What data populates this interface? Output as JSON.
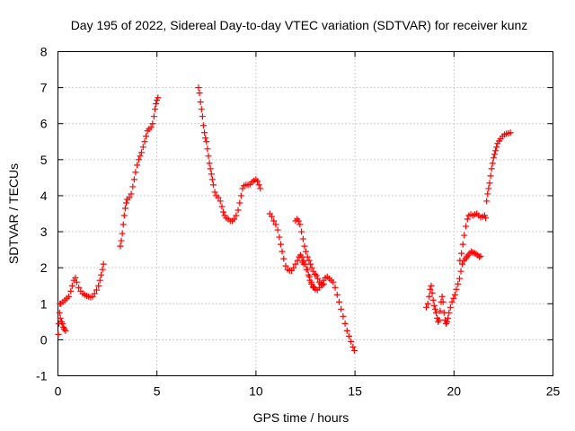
{
  "chart_data": {
    "type": "scatter",
    "title": "Day 195 of 2022, Sidereal Day-to-day VTEC variation (SDTVAR) for receiver kunz",
    "xlabel": "GPS time / hours",
    "ylabel": "SDTVAR / TECUs",
    "xlim": [
      0,
      25
    ],
    "ylim": [
      -1,
      8
    ],
    "xticks": [
      0,
      5,
      10,
      15,
      20,
      25
    ],
    "yticks": [
      -1,
      0,
      1,
      2,
      3,
      4,
      5,
      6,
      7,
      8
    ],
    "grid": true,
    "marker": "+",
    "color": "#ff0000",
    "series": [
      {
        "name": "",
        "points": [
          [
            0.02,
            0.15
          ],
          [
            0.05,
            0.45
          ],
          [
            0.08,
            0.75
          ],
          [
            0.1,
            1.0
          ],
          [
            0.12,
            0.6
          ],
          [
            0.18,
            0.5
          ],
          [
            0.22,
            0.45
          ],
          [
            0.28,
            0.35
          ],
          [
            0.32,
            0.3
          ],
          [
            0.38,
            0.25
          ],
          [
            0.15,
            1.0
          ],
          [
            0.25,
            1.05
          ],
          [
            0.35,
            1.1
          ],
          [
            0.45,
            1.15
          ],
          [
            0.55,
            1.2
          ],
          [
            0.65,
            1.35
          ],
          [
            0.72,
            1.5
          ],
          [
            0.8,
            1.65
          ],
          [
            0.88,
            1.72
          ],
          [
            0.95,
            1.6
          ],
          [
            1.05,
            1.45
          ],
          [
            1.15,
            1.35
          ],
          [
            1.25,
            1.28
          ],
          [
            1.35,
            1.25
          ],
          [
            1.45,
            1.22
          ],
          [
            1.55,
            1.2
          ],
          [
            1.65,
            1.18
          ],
          [
            1.75,
            1.2
          ],
          [
            1.85,
            1.28
          ],
          [
            1.95,
            1.38
          ],
          [
            2.05,
            1.5
          ],
          [
            2.12,
            1.65
          ],
          [
            2.18,
            1.8
          ],
          [
            2.25,
            1.95
          ],
          [
            2.3,
            2.1
          ],
          [
            3.15,
            2.6
          ],
          [
            3.2,
            2.75
          ],
          [
            3.25,
            2.95
          ],
          [
            3.3,
            3.2
          ],
          [
            3.35,
            3.45
          ],
          [
            3.4,
            3.65
          ],
          [
            3.45,
            3.8
          ],
          [
            3.5,
            3.9
          ],
          [
            3.6,
            3.95
          ],
          [
            3.7,
            4.05
          ],
          [
            3.78,
            4.25
          ],
          [
            3.85,
            4.45
          ],
          [
            3.92,
            4.65
          ],
          [
            4.0,
            4.85
          ],
          [
            4.08,
            5.0
          ],
          [
            4.15,
            5.1
          ],
          [
            4.22,
            5.2
          ],
          [
            4.3,
            5.35
          ],
          [
            4.38,
            5.5
          ],
          [
            4.45,
            5.65
          ],
          [
            4.52,
            5.8
          ],
          [
            4.6,
            5.85
          ],
          [
            4.7,
            5.9
          ],
          [
            4.78,
            6.0
          ],
          [
            4.85,
            6.2
          ],
          [
            4.9,
            6.4
          ],
          [
            4.95,
            6.55
          ],
          [
            5.0,
            6.65
          ],
          [
            5.05,
            6.72
          ],
          [
            7.1,
            7.0
          ],
          [
            7.15,
            6.85
          ],
          [
            7.2,
            6.6
          ],
          [
            7.25,
            6.4
          ],
          [
            7.3,
            6.2
          ],
          [
            7.35,
            5.95
          ],
          [
            7.4,
            5.75
          ],
          [
            7.45,
            5.6
          ],
          [
            7.5,
            5.5
          ],
          [
            7.55,
            5.3
          ],
          [
            7.6,
            5.1
          ],
          [
            7.65,
            4.9
          ],
          [
            7.7,
            4.75
          ],
          [
            7.75,
            4.6
          ],
          [
            7.8,
            4.45
          ],
          [
            7.85,
            4.3
          ],
          [
            7.92,
            4.1
          ],
          [
            8.0,
            4.0
          ],
          [
            8.1,
            3.95
          ],
          [
            8.2,
            3.85
          ],
          [
            8.28,
            3.7
          ],
          [
            8.35,
            3.55
          ],
          [
            8.42,
            3.45
          ],
          [
            8.5,
            3.38
          ],
          [
            8.6,
            3.35
          ],
          [
            8.7,
            3.3
          ],
          [
            8.8,
            3.3
          ],
          [
            8.9,
            3.35
          ],
          [
            9.0,
            3.45
          ],
          [
            9.1,
            3.6
          ],
          [
            9.18,
            3.8
          ],
          [
            9.25,
            4.0
          ],
          [
            9.32,
            4.2
          ],
          [
            9.4,
            4.28
          ],
          [
            9.5,
            4.3
          ],
          [
            9.6,
            4.3
          ],
          [
            9.7,
            4.32
          ],
          [
            9.8,
            4.38
          ],
          [
            9.9,
            4.42
          ],
          [
            10.0,
            4.45
          ],
          [
            10.08,
            4.4
          ],
          [
            10.15,
            4.3
          ],
          [
            10.22,
            4.2
          ],
          [
            10.7,
            3.5
          ],
          [
            10.8,
            3.42
          ],
          [
            10.9,
            3.3
          ],
          [
            11.0,
            3.2
          ],
          [
            11.1,
            3.05
          ],
          [
            11.18,
            2.85
          ],
          [
            11.25,
            2.65
          ],
          [
            11.32,
            2.45
          ],
          [
            11.4,
            2.25
          ],
          [
            11.5,
            2.05
          ],
          [
            11.6,
            1.95
          ],
          [
            11.7,
            1.92
          ],
          [
            11.8,
            1.92
          ],
          [
            11.9,
            2.0
          ],
          [
            12.0,
            2.1
          ],
          [
            12.1,
            2.2
          ],
          [
            12.18,
            2.3
          ],
          [
            12.25,
            2.35
          ],
          [
            12.32,
            2.3
          ],
          [
            12.4,
            2.2
          ],
          [
            12.5,
            2.1
          ],
          [
            12.6,
            1.95
          ],
          [
            12.7,
            1.75
          ],
          [
            12.8,
            1.6
          ],
          [
            12.9,
            1.45
          ],
          [
            13.0,
            1.4
          ],
          [
            13.1,
            1.38
          ],
          [
            13.2,
            1.45
          ],
          [
            13.3,
            1.55
          ],
          [
            13.4,
            1.65
          ],
          [
            13.5,
            1.72
          ],
          [
            13.6,
            1.75
          ],
          [
            13.7,
            1.7
          ],
          [
            13.8,
            1.65
          ],
          [
            13.9,
            1.6
          ],
          [
            14.0,
            1.45
          ],
          [
            14.1,
            1.25
          ],
          [
            14.2,
            1.05
          ],
          [
            14.3,
            0.85
          ],
          [
            14.4,
            0.65
          ],
          [
            14.5,
            0.45
          ],
          [
            14.6,
            0.25
          ],
          [
            14.7,
            0.1
          ],
          [
            14.8,
            -0.05
          ],
          [
            14.9,
            -0.2
          ],
          [
            14.97,
            -0.3
          ],
          [
            12.0,
            3.3
          ],
          [
            12.08,
            3.35
          ],
          [
            12.15,
            3.3
          ],
          [
            12.22,
            3.2
          ],
          [
            12.3,
            3.0
          ],
          [
            12.38,
            2.8
          ],
          [
            12.45,
            2.6
          ],
          [
            12.52,
            2.45
          ],
          [
            12.6,
            2.3
          ],
          [
            12.68,
            2.2
          ],
          [
            12.75,
            2.1
          ],
          [
            12.82,
            2.0
          ],
          [
            12.9,
            1.9
          ],
          [
            12.98,
            1.82
          ],
          [
            13.05,
            1.78
          ],
          [
            13.12,
            1.7
          ],
          [
            13.2,
            1.6
          ],
          [
            13.28,
            1.55
          ],
          [
            13.35,
            1.52
          ],
          [
            13.42,
            1.55
          ],
          [
            12.35,
            2.15
          ],
          [
            12.42,
            2.1
          ],
          [
            12.55,
            1.95
          ],
          [
            12.65,
            1.8
          ],
          [
            12.72,
            1.65
          ],
          [
            12.8,
            1.55
          ],
          [
            12.88,
            1.48
          ],
          [
            12.95,
            1.45
          ],
          [
            18.6,
            0.9
          ],
          [
            18.68,
            1.0
          ],
          [
            18.75,
            1.2
          ],
          [
            18.8,
            1.4
          ],
          [
            18.85,
            1.5
          ],
          [
            18.9,
            1.3
          ],
          [
            18.95,
            1.1
          ],
          [
            19.0,
            0.95
          ],
          [
            19.05,
            0.85
          ],
          [
            19.1,
            0.75
          ],
          [
            19.15,
            0.6
          ],
          [
            19.2,
            0.5
          ],
          [
            19.25,
            0.55
          ],
          [
            19.3,
            0.8
          ],
          [
            19.35,
            1.05
          ],
          [
            19.4,
            1.2
          ],
          [
            19.45,
            1.05
          ],
          [
            19.5,
            0.75
          ],
          [
            19.55,
            0.55
          ],
          [
            19.6,
            0.45
          ],
          [
            19.65,
            0.5
          ],
          [
            19.7,
            0.6
          ],
          [
            19.75,
            0.75
          ],
          [
            19.82,
            0.9
          ],
          [
            19.9,
            1.05
          ],
          [
            19.98,
            1.15
          ],
          [
            20.05,
            1.25
          ],
          [
            20.12,
            1.4
          ],
          [
            20.2,
            1.55
          ],
          [
            20.28,
            1.7
          ],
          [
            20.35,
            1.9
          ],
          [
            20.42,
            2.1
          ],
          [
            20.5,
            2.2
          ],
          [
            20.58,
            2.25
          ],
          [
            20.65,
            2.3
          ],
          [
            20.72,
            2.35
          ],
          [
            20.8,
            2.4
          ],
          [
            20.88,
            2.45
          ],
          [
            20.95,
            2.42
          ],
          [
            21.05,
            2.4
          ],
          [
            21.12,
            2.38
          ],
          [
            21.2,
            2.35
          ],
          [
            21.28,
            2.3
          ],
          [
            21.35,
            2.32
          ],
          [
            20.3,
            2.2
          ],
          [
            20.38,
            2.4
          ],
          [
            20.45,
            2.65
          ],
          [
            20.52,
            2.9
          ],
          [
            20.6,
            3.15
          ],
          [
            20.68,
            3.35
          ],
          [
            20.75,
            3.45
          ],
          [
            20.85,
            3.48
          ],
          [
            20.95,
            3.45
          ],
          [
            21.05,
            3.48
          ],
          [
            21.15,
            3.5
          ],
          [
            21.25,
            3.45
          ],
          [
            21.35,
            3.4
          ],
          [
            21.45,
            3.42
          ],
          [
            21.55,
            3.45
          ],
          [
            21.6,
            3.38
          ],
          [
            21.65,
            3.85
          ],
          [
            21.7,
            4.05
          ],
          [
            21.75,
            4.2
          ],
          [
            21.8,
            4.35
          ],
          [
            21.85,
            4.55
          ],
          [
            21.9,
            4.75
          ],
          [
            21.95,
            4.9
          ],
          [
            22.0,
            5.05
          ],
          [
            22.05,
            5.15
          ],
          [
            22.1,
            5.25
          ],
          [
            22.15,
            5.35
          ],
          [
            22.2,
            5.45
          ],
          [
            22.28,
            5.52
          ],
          [
            22.35,
            5.58
          ],
          [
            22.45,
            5.65
          ],
          [
            22.55,
            5.7
          ],
          [
            22.65,
            5.72
          ],
          [
            22.75,
            5.73
          ],
          [
            22.85,
            5.75
          ]
        ]
      }
    ]
  }
}
